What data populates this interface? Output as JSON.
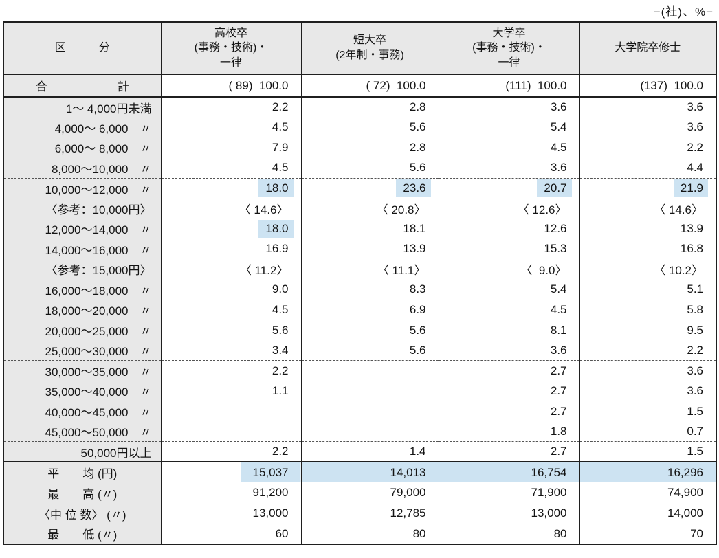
{
  "caption": "−(社)、%−",
  "colors": {
    "header_bg": "#e8e8e8",
    "highlight": "#cde3f2",
    "border": "#1f1f1f"
  },
  "table": {
    "category_header": "区　　　分",
    "columns": [
      "高校卒\n(事務・技術)・\n一律",
      "短大卒\n(2年制・事務)",
      "大学卒\n(事務・技術)・\n一律",
      "大学院卒修士"
    ],
    "total_row": {
      "label": "合　　　　　　計",
      "values": [
        "( 89)  100.0",
        "( 72)  100.0",
        "(111)  100.0",
        "(137)  100.0"
      ]
    },
    "rows": [
      {
        "label": "1〜 4,000円未満",
        "values": [
          "2.2",
          "2.8",
          "3.6",
          "3.6"
        ]
      },
      {
        "label": "4,000〜 6,000　〃",
        "values": [
          "4.5",
          "5.6",
          "5.4",
          "3.6"
        ]
      },
      {
        "label": "6,000〜 8,000　〃",
        "values": [
          "7.9",
          "2.8",
          "4.5",
          "2.2"
        ]
      },
      {
        "label": "8,000〜10,000　〃",
        "values": [
          "4.5",
          "5.6",
          "3.6",
          "4.4"
        ],
        "sep": "dashed"
      },
      {
        "label": "10,000〜12,000　〃",
        "values": [
          "18.0",
          "23.6",
          "20.7",
          "21.9"
        ],
        "hl": [
          true,
          true,
          true,
          true
        ]
      },
      {
        "label": "〈参考：10,000円〉",
        "values": [
          "〈 14.6〉",
          "〈 20.8〉",
          "〈 12.6〉",
          "〈 14.6〉"
        ]
      },
      {
        "label": "12,000〜14,000　〃",
        "values": [
          "18.0",
          "18.1",
          "12.6",
          "13.9"
        ],
        "hl": [
          true,
          false,
          false,
          false
        ]
      },
      {
        "label": "14,000〜16,000　〃",
        "values": [
          "16.9",
          "13.9",
          "15.3",
          "16.8"
        ]
      },
      {
        "label": "〈参考：15,000円〉",
        "values": [
          "〈 11.2〉",
          "〈 11.1〉",
          "〈  9.0〉",
          "〈 10.2〉"
        ]
      },
      {
        "label": "16,000〜18,000　〃",
        "values": [
          "9.0",
          "8.3",
          "5.4",
          "5.1"
        ]
      },
      {
        "label": "18,000〜20,000　〃",
        "values": [
          "4.5",
          "6.9",
          "4.5",
          "5.8"
        ],
        "sep": "dashed"
      },
      {
        "label": "20,000〜25,000　〃",
        "values": [
          "5.6",
          "5.6",
          "8.1",
          "9.5"
        ]
      },
      {
        "label": "25,000〜30,000　〃",
        "values": [
          "3.4",
          "5.6",
          "3.6",
          "2.2"
        ],
        "sep": "dashed"
      },
      {
        "label": "30,000〜35,000　〃",
        "values": [
          "2.2",
          "",
          "2.7",
          "3.6"
        ]
      },
      {
        "label": "35,000〜40,000　〃",
        "values": [
          "1.1",
          "",
          "2.7",
          "3.6"
        ],
        "sep": "dashed"
      },
      {
        "label": "40,000〜45,000　〃",
        "values": [
          "",
          "",
          "2.7",
          "1.5"
        ]
      },
      {
        "label": "45,000〜50,000　〃",
        "values": [
          "",
          "",
          "1.8",
          "0.7"
        ],
        "sep": "dashed"
      },
      {
        "label": "50,000円以上",
        "values": [
          "2.2",
          "1.4",
          "2.7",
          "1.5"
        ],
        "sep": "solid"
      }
    ],
    "summary_rows": [
      {
        "label": "平　　均 (円)",
        "values": [
          "15,037",
          "14,013",
          "16,754",
          "16,296"
        ],
        "hl_row": "mean"
      },
      {
        "label": "最　　高 (〃)",
        "values": [
          "91,200",
          "79,000",
          "71,900",
          "74,900"
        ]
      },
      {
        "label": "〈中 位 数〉 (〃)",
        "values": [
          "13,000",
          "12,785",
          "13,000",
          "14,000"
        ]
      },
      {
        "label": "最　　低 (〃)",
        "values": [
          "60",
          "80",
          "80",
          "70"
        ]
      }
    ]
  }
}
